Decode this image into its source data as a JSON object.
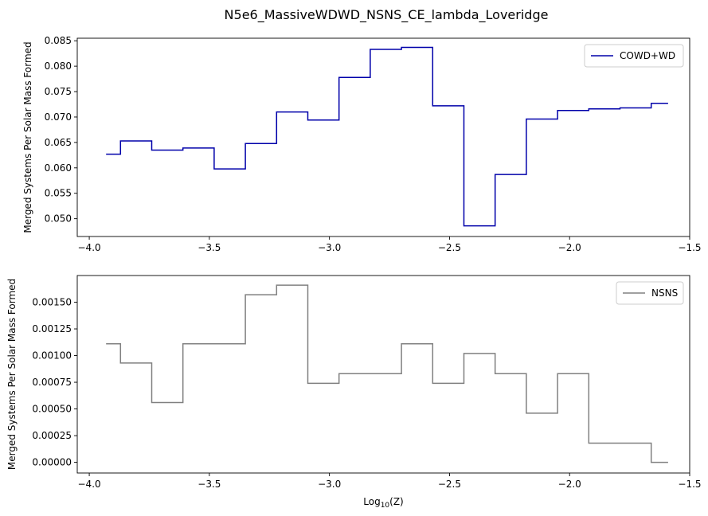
{
  "figure": {
    "title": "N5e6_MassiveWDWD_NSNS_CE_lambda_Loveridge"
  },
  "chart_data": [
    {
      "type": "line",
      "drawstyle": "steps-post",
      "title": "",
      "xlabel": "",
      "ylabel": "Merged Systems Per Solar Mass Formed",
      "xlim": [
        -4.05,
        -1.5
      ],
      "ylim": [
        0.0465,
        0.0855
      ],
      "xticks": [
        -4.0,
        -3.5,
        -3.0,
        -2.5,
        -2.0,
        -1.5
      ],
      "xtick_labels": [
        "−4.0",
        "−3.5",
        "−3.0",
        "−2.5",
        "−2.0",
        "−1.5"
      ],
      "yticks": [
        0.05,
        0.055,
        0.06,
        0.065,
        0.07,
        0.075,
        0.08,
        0.085
      ],
      "ytick_labels": [
        "0.050",
        "0.055",
        "0.060",
        "0.065",
        "0.070",
        "0.075",
        "0.080",
        "0.085"
      ],
      "grid": false,
      "legend_position": "top-right",
      "series": [
        {
          "name": "COWD+WD",
          "color": "#0000aa",
          "x": [
            -3.93,
            -3.87,
            -3.74,
            -3.61,
            -3.48,
            -3.35,
            -3.22,
            -3.09,
            -2.96,
            -2.83,
            -2.7,
            -2.57,
            -2.44,
            -2.31,
            -2.18,
            -2.05,
            -1.92,
            -1.79,
            -1.66,
            -1.59
          ],
          "y": [
            0.0627,
            0.0653,
            0.0635,
            0.0639,
            0.0598,
            0.0648,
            0.071,
            0.0694,
            0.0778,
            0.0833,
            0.0837,
            0.0722,
            0.0486,
            0.0587,
            0.0696,
            0.0713,
            0.0716,
            0.0718,
            0.0727,
            0.0727
          ]
        }
      ]
    },
    {
      "type": "line",
      "drawstyle": "steps-post",
      "title": "",
      "xlabel_prefix": "Log",
      "xlabel_sub": "10",
      "xlabel_suffix": "(Z)",
      "ylabel": "Merged Systems Per Solar Mass Formed",
      "xlim": [
        -4.05,
        -1.5
      ],
      "ylim": [
        -0.0001,
        0.00175
      ],
      "xticks": [
        -4.0,
        -3.5,
        -3.0,
        -2.5,
        -2.0,
        -1.5
      ],
      "xtick_labels": [
        "−4.0",
        "−3.5",
        "−3.0",
        "−2.5",
        "−2.0",
        "−1.5"
      ],
      "yticks": [
        0.0,
        0.00025,
        0.0005,
        0.00075,
        0.001,
        0.00125,
        0.0015
      ],
      "ytick_labels": [
        "0.00000",
        "0.00025",
        "0.00050",
        "0.00075",
        "0.00100",
        "0.00125",
        "0.00150"
      ],
      "grid": false,
      "legend_position": "top-right",
      "series": [
        {
          "name": "NSNS",
          "color": "#808080",
          "x": [
            -3.93,
            -3.87,
            -3.74,
            -3.61,
            -3.48,
            -3.35,
            -3.22,
            -3.09,
            -2.96,
            -2.83,
            -2.7,
            -2.57,
            -2.44,
            -2.31,
            -2.18,
            -2.05,
            -1.92,
            -1.79,
            -1.66,
            -1.59
          ],
          "y": [
            0.00111,
            0.00093,
            0.00056,
            0.00111,
            0.00111,
            0.00157,
            0.00166,
            0.00074,
            0.00083,
            0.00083,
            0.00111,
            0.00074,
            0.00102,
            0.00083,
            0.00046,
            0.00083,
            0.00018,
            0.00018,
            0.0,
            0.0
          ]
        }
      ]
    }
  ]
}
